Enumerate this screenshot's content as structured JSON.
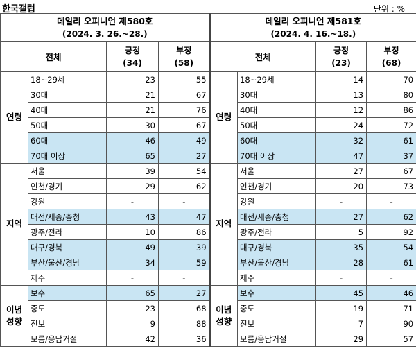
{
  "source": "한국갤럽",
  "unit": "단위 : %",
  "surveys": [
    {
      "title": "데일리 오피니언 제580호",
      "period": "(2024. 3. 26.~28.)",
      "overall": "전체",
      "positive": "긍정",
      "positive_n": "(34)",
      "negative": "부정",
      "negative_n": "(58)"
    },
    {
      "title": "데일리 오피니언 제581호",
      "period": "(2024. 4. 16.~18.)",
      "overall": "전체",
      "positive": "긍정",
      "positive_n": "(23)",
      "negative": "부정",
      "negative_n": "(68)"
    }
  ],
  "groups": [
    {
      "name": "연령",
      "rows": [
        {
          "label": "18~29세",
          "s1": [
            "23",
            "55"
          ],
          "s2": [
            "14",
            "70"
          ],
          "hl": false
        },
        {
          "label": "30대",
          "s1": [
            "21",
            "67"
          ],
          "s2": [
            "13",
            "80"
          ],
          "hl": false
        },
        {
          "label": "40대",
          "s1": [
            "21",
            "76"
          ],
          "s2": [
            "12",
            "86"
          ],
          "hl": false
        },
        {
          "label": "50대",
          "s1": [
            "30",
            "67"
          ],
          "s2": [
            "24",
            "72"
          ],
          "hl": false
        },
        {
          "label": "60대",
          "s1": [
            "46",
            "49"
          ],
          "s2": [
            "32",
            "61"
          ],
          "hl": true
        },
        {
          "label": "70대 이상",
          "s1": [
            "65",
            "27"
          ],
          "s2": [
            "47",
            "37"
          ],
          "hl": true
        }
      ]
    },
    {
      "name": "지역",
      "rows": [
        {
          "label": "서울",
          "s1": [
            "39",
            "54"
          ],
          "s2": [
            "27",
            "67"
          ],
          "hl": false
        },
        {
          "label": "인천/경기",
          "s1": [
            "29",
            "62"
          ],
          "s2": [
            "20",
            "73"
          ],
          "hl": false
        },
        {
          "label": "강원",
          "s1": [
            "-",
            "-"
          ],
          "s2": [
            "-",
            "-"
          ],
          "hl": false
        },
        {
          "label": "대전/세종/충청",
          "s1": [
            "43",
            "47"
          ],
          "s2": [
            "27",
            "62"
          ],
          "hl": true
        },
        {
          "label": "광주/전라",
          "s1": [
            "10",
            "86"
          ],
          "s2": [
            "5",
            "92"
          ],
          "hl": false
        },
        {
          "label": "대구/경북",
          "s1": [
            "49",
            "39"
          ],
          "s2": [
            "35",
            "54"
          ],
          "hl": true
        },
        {
          "label": "부산/울산/경남",
          "s1": [
            "34",
            "59"
          ],
          "s2": [
            "28",
            "61"
          ],
          "hl": true
        },
        {
          "label": "제주",
          "s1": [
            "-",
            "-"
          ],
          "s2": [
            "-",
            "-"
          ],
          "hl": false
        }
      ]
    },
    {
      "name": "이념 성향",
      "rows": [
        {
          "label": "보수",
          "s1": [
            "65",
            "27"
          ],
          "s2": [
            "45",
            "46"
          ],
          "hl": true
        },
        {
          "label": "중도",
          "s1": [
            "23",
            "68"
          ],
          "s2": [
            "19",
            "71"
          ],
          "hl": false
        },
        {
          "label": "진보",
          "s1": [
            "9",
            "88"
          ],
          "s2": [
            "7",
            "90"
          ],
          "hl": false
        },
        {
          "label": "모름/응답거절",
          "s1": [
            "42",
            "36"
          ],
          "s2": [
            "29",
            "57"
          ],
          "hl": false
        }
      ]
    }
  ]
}
